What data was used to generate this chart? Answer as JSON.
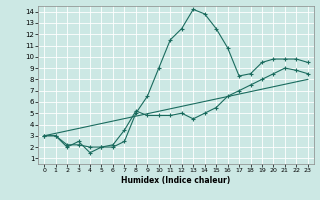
{
  "xlabel": "Humidex (Indice chaleur)",
  "ylabel": "",
  "xlim": [
    -0.5,
    23.5
  ],
  "ylim": [
    0.5,
    14.5
  ],
  "xticks": [
    0,
    1,
    2,
    3,
    4,
    5,
    6,
    7,
    8,
    9,
    10,
    11,
    12,
    13,
    14,
    15,
    16,
    17,
    18,
    19,
    20,
    21,
    22,
    23
  ],
  "yticks": [
    1,
    2,
    3,
    4,
    5,
    6,
    7,
    8,
    9,
    10,
    11,
    12,
    13,
    14
  ],
  "bg_color": "#cce8e4",
  "line_color": "#1a6b5e",
  "grid_color": "#ffffff",
  "lines": [
    {
      "x": [
        0,
        1,
        2,
        3,
        4,
        5,
        6,
        7,
        8,
        9,
        10,
        11,
        12,
        13,
        14,
        15,
        16,
        17,
        18,
        19,
        20,
        21,
        22,
        23
      ],
      "y": [
        3,
        3,
        2,
        2.5,
        1.5,
        2,
        2,
        2.5,
        5,
        6.5,
        9,
        11.5,
        12.5,
        14.2,
        13.8,
        12.5,
        10.8,
        8.3,
        8.5,
        9.5,
        9.8,
        9.8,
        9.8,
        9.5
      ],
      "marker": true
    },
    {
      "x": [
        0,
        1,
        2,
        3,
        4,
        5,
        6,
        7,
        8,
        9,
        10,
        11,
        12,
        13,
        14,
        15,
        16,
        17,
        18,
        19,
        20,
        21,
        22,
        23
      ],
      "y": [
        3,
        3,
        2.2,
        2.2,
        2,
        2,
        2.2,
        3.5,
        5.2,
        4.8,
        4.8,
        4.8,
        5.0,
        4.5,
        5.0,
        5.5,
        6.5,
        7.0,
        7.5,
        8.0,
        8.5,
        9.0,
        8.8,
        8.5
      ],
      "marker": true
    },
    {
      "x": [
        0,
        23
      ],
      "y": [
        3,
        8.0
      ],
      "marker": false
    }
  ]
}
